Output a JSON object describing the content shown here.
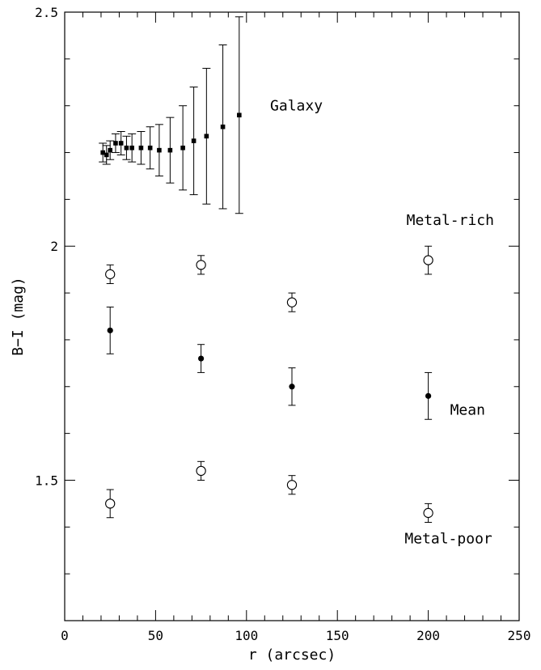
{
  "chart_data": {
    "type": "scatter",
    "title": "",
    "xlabel": "r (arcsec)",
    "ylabel": "B−I (mag)",
    "xlim": [
      0,
      250
    ],
    "ylim": [
      1.2,
      2.5
    ],
    "x_major_ticks": [
      0,
      50,
      100,
      150,
      200,
      250
    ],
    "x_major_tick_labels": [
      "0",
      "50",
      "100",
      "150",
      "200",
      "250"
    ],
    "x_minor_step": 10,
    "y_major_ticks": [
      1.5,
      2.0,
      2.5
    ],
    "y_major_tick_labels": [
      "1.5",
      "2",
      "2.5"
    ],
    "y_minor_step": 0.1,
    "grid": false,
    "legend": "none",
    "series": [
      {
        "name": "Galaxy",
        "marker": "filled-square",
        "points": [
          {
            "x": 21,
            "y": 2.2,
            "err": 0.02
          },
          {
            "x": 23,
            "y": 2.195,
            "err": 0.02
          },
          {
            "x": 25,
            "y": 2.205,
            "err": 0.02
          },
          {
            "x": 28,
            "y": 2.22,
            "err": 0.02
          },
          {
            "x": 31,
            "y": 2.22,
            "err": 0.025
          },
          {
            "x": 34,
            "y": 2.21,
            "err": 0.025
          },
          {
            "x": 37,
            "y": 2.21,
            "err": 0.03
          },
          {
            "x": 42,
            "y": 2.21,
            "err": 0.035
          },
          {
            "x": 47,
            "y": 2.21,
            "err": 0.045
          },
          {
            "x": 52,
            "y": 2.205,
            "err": 0.055
          },
          {
            "x": 58,
            "y": 2.205,
            "err": 0.07
          },
          {
            "x": 65,
            "y": 2.21,
            "err": 0.09
          },
          {
            "x": 71,
            "y": 2.225,
            "err": 0.115
          },
          {
            "x": 78,
            "y": 2.235,
            "err": 0.145
          },
          {
            "x": 87,
            "y": 2.255,
            "err": 0.175
          },
          {
            "x": 96,
            "y": 2.28,
            "err": 0.21
          }
        ]
      },
      {
        "name": "Metal-rich",
        "marker": "open-circle",
        "points": [
          {
            "x": 25,
            "y": 1.94,
            "err": 0.02
          },
          {
            "x": 75,
            "y": 1.96,
            "err": 0.02
          },
          {
            "x": 125,
            "y": 1.88,
            "err": 0.02
          },
          {
            "x": 200,
            "y": 1.97,
            "err": 0.03
          }
        ]
      },
      {
        "name": "Mean",
        "marker": "filled-circle",
        "points": [
          {
            "x": 25,
            "y": 1.82,
            "err": 0.05
          },
          {
            "x": 75,
            "y": 1.76,
            "err": 0.03
          },
          {
            "x": 125,
            "y": 1.7,
            "err": 0.04
          },
          {
            "x": 200,
            "y": 1.68,
            "err": 0.05
          }
        ]
      },
      {
        "name": "Metal-poor",
        "marker": "open-circle",
        "points": [
          {
            "x": 25,
            "y": 1.45,
            "err": 0.03
          },
          {
            "x": 75,
            "y": 1.52,
            "err": 0.02
          },
          {
            "x": 125,
            "y": 1.49,
            "err": 0.02
          },
          {
            "x": 200,
            "y": 1.43,
            "err": 0.02
          }
        ]
      }
    ],
    "annotations": [
      {
        "text": "Galaxy",
        "x": 113,
        "y": 2.29
      },
      {
        "text": "Metal-rich",
        "x": 188,
        "y": 2.045
      },
      {
        "text": "Mean",
        "x": 212,
        "y": 1.64
      },
      {
        "text": "Metal-poor",
        "x": 187,
        "y": 1.365
      }
    ]
  }
}
